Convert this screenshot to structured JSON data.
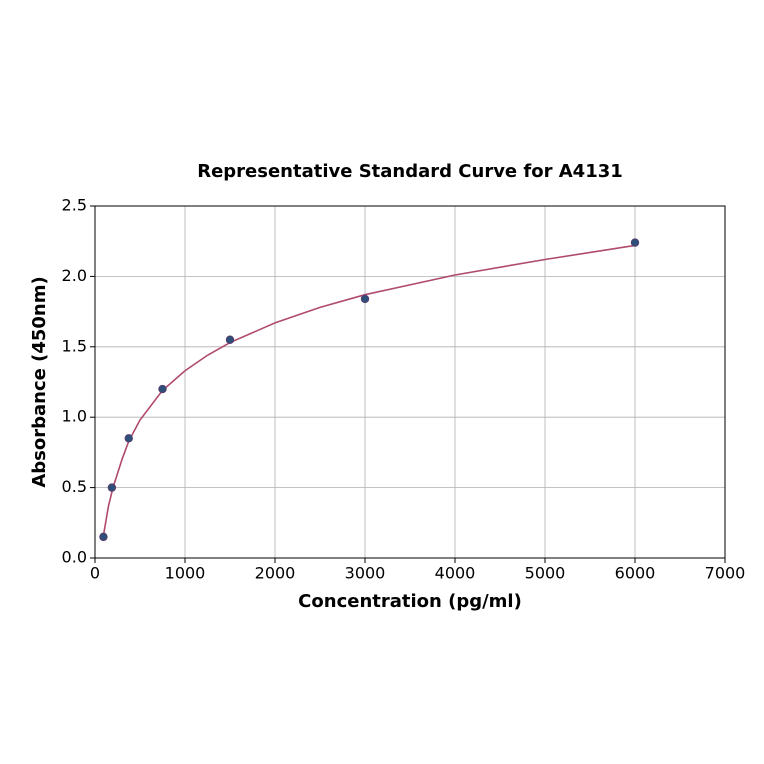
{
  "chart_data": {
    "type": "scatter",
    "title": "Representative Standard Curve for A4131",
    "x_label": "Concentration (pg/ml)",
    "y_label": "Absorbance (450nm)",
    "x": [
      93.75,
      187.5,
      375,
      750,
      1500,
      3000,
      6000
    ],
    "values": [
      0.15,
      0.5,
      0.85,
      1.2,
      1.55,
      1.84,
      2.24
    ],
    "color": "#2e4f7a",
    "curve": {
      "x": [
        93.75,
        150,
        200,
        300,
        375,
        500,
        750,
        1000,
        1250,
        1500,
        2000,
        2500,
        3000,
        4000,
        5000,
        6000
      ],
      "values": [
        0.16,
        0.37,
        0.5,
        0.7,
        0.83,
        0.98,
        1.19,
        1.33,
        1.44,
        1.53,
        1.67,
        1.78,
        1.87,
        2.01,
        2.12,
        2.22
      ],
      "color": "#b04a6c"
    },
    "xlim": [
      0,
      7000
    ],
    "xticks": [
      0,
      1000,
      2000,
      3000,
      4000,
      5000,
      6000,
      7000
    ],
    "ylim": [
      0,
      2.5
    ],
    "yticks": [
      {
        "value": 0,
        "label": "0.0"
      },
      0.5,
      {
        "value": 1,
        "label": "1.0"
      },
      1.5,
      {
        "value": 2,
        "label": "2.0"
      },
      2.5
    ],
    "grid": true
  }
}
